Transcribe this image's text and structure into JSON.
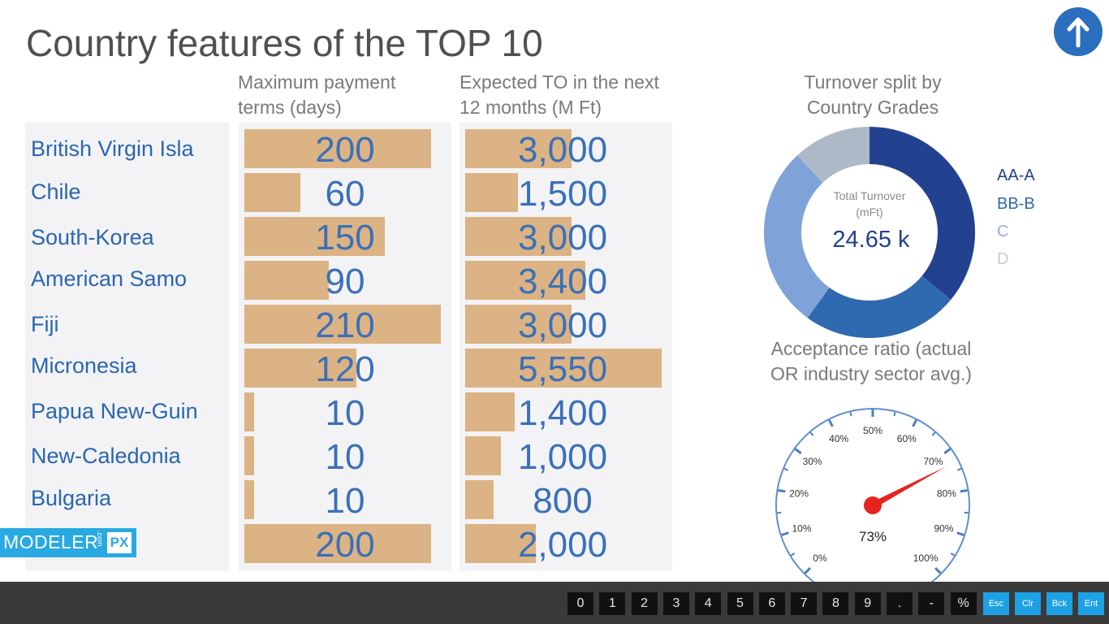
{
  "title": "Country features of the TOP 10",
  "headers": {
    "payment": [
      "Maximum payment",
      "terms (days)"
    ],
    "turnover": [
      "Expected TO in the next",
      "12 months (M Ft)"
    ]
  },
  "rows": [
    {
      "country": "British Virgin Isla",
      "payment_days": 200,
      "payment_label": "200",
      "turnover": 3000,
      "turnover_label": "3,000"
    },
    {
      "country": "Chile",
      "payment_days": 60,
      "payment_label": "60",
      "turnover": 1500,
      "turnover_label": "1,500"
    },
    {
      "country": "South-Korea",
      "payment_days": 150,
      "payment_label": "150",
      "turnover": 3000,
      "turnover_label": "3,000"
    },
    {
      "country": "American Samo",
      "payment_days": 90,
      "payment_label": "90",
      "turnover": 3400,
      "turnover_label": "3,400"
    },
    {
      "country": "Fiji",
      "payment_days": 210,
      "payment_label": "210",
      "turnover": 3000,
      "turnover_label": "3,000"
    },
    {
      "country": "Micronesia",
      "payment_days": 120,
      "payment_label": "120",
      "turnover": 5550,
      "turnover_label": "5,550"
    },
    {
      "country": "Papua New-Guin",
      "payment_days": 10,
      "payment_label": "10",
      "turnover": 1400,
      "turnover_label": "1,400"
    },
    {
      "country": "New-Caledonia",
      "payment_days": 10,
      "payment_label": "10",
      "turnover": 1000,
      "turnover_label": "1,000"
    },
    {
      "country": "Bulgaria",
      "payment_days": 10,
      "payment_label": "10",
      "turnover": 800,
      "turnover_label": "800"
    },
    {
      "country": "",
      "payment_days": 200,
      "payment_label": "200",
      "turnover": 2000,
      "turnover_label": "2,000"
    }
  ],
  "payment_max": 210,
  "turnover_max": 5550,
  "chart_data": [
    {
      "type": "pie",
      "title": "Turnover split by Country Grades",
      "categories": [
        "AA-A",
        "BB-B",
        "C",
        "D"
      ],
      "values": [
        0.36,
        0.24,
        0.28,
        0.12
      ],
      "center_label": "Total Turnover (mFt)",
      "center_value": "24.65 k",
      "colors": [
        "#22418f",
        "#2f6ab0",
        "#7fa3d8",
        "#aeb9c8"
      ],
      "legend": "right"
    },
    {
      "type": "gauge",
      "title": "Acceptance ratio (actual OR industry sector avg.)",
      "value": 73,
      "value_label": "73%",
      "ticks": [
        "0%",
        "10%",
        "20%",
        "30%",
        "40%",
        "50%",
        "60%",
        "70%",
        "80%",
        "90%",
        "100%"
      ]
    }
  ],
  "donut": {
    "title_lines": [
      "Turnover split by",
      "Country Grades"
    ],
    "center_lines": [
      "Total Turnover",
      "(mFt)"
    ],
    "center_value": "24.65 k",
    "legend": [
      {
        "label": "AA-A",
        "color": "#22418f"
      },
      {
        "label": "BB-B",
        "color": "#2f6ab0"
      },
      {
        "label": "C",
        "color": "#8fb0de"
      },
      {
        "label": "D",
        "color": "#c6ccd6"
      }
    ]
  },
  "gauge": {
    "title_lines": [
      "Acceptance ratio (actual",
      "OR industry sector avg.)"
    ],
    "value_label": "73%",
    "accent": "#e8231e"
  },
  "logo": {
    "text": "MODELER",
    "small": ".com",
    "badge": "PX"
  },
  "up_icon": "arrow-up-icon",
  "keypad": {
    "keys": [
      "0",
      "1",
      "2",
      "3",
      "4",
      "5",
      "6",
      "7",
      "8",
      "9",
      ".",
      "-",
      "%"
    ],
    "actions": [
      "Esc",
      "Clr",
      "Bck",
      "Ent"
    ]
  }
}
